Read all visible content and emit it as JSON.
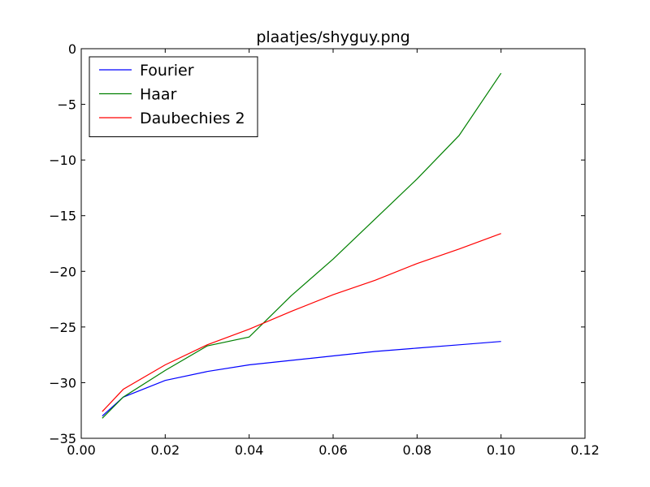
{
  "chart_data": {
    "type": "line",
    "title": "plaatjes/shyguy.png",
    "xlabel": "",
    "ylabel": "",
    "xlim": [
      0.0,
      0.12
    ],
    "ylim": [
      -35,
      0
    ],
    "x_ticks": [
      0.0,
      0.02,
      0.04,
      0.06,
      0.08,
      0.1,
      0.12
    ],
    "x_tick_labels": [
      "0.00",
      "0.02",
      "0.04",
      "0.06",
      "0.08",
      "0.10",
      "0.12"
    ],
    "y_ticks": [
      0,
      -5,
      -10,
      -15,
      -20,
      -25,
      -30,
      -35
    ],
    "y_tick_labels": [
      "0",
      "−5",
      "−10",
      "−15",
      "−20",
      "−25",
      "−30",
      "−35"
    ],
    "grid": false,
    "legend_position": "top-left",
    "series": [
      {
        "name": "Fourier",
        "color": "#0000ff",
        "x": [
          0.005,
          0.01,
          0.02,
          0.03,
          0.04,
          0.05,
          0.06,
          0.07,
          0.08,
          0.09,
          0.1
        ],
        "y": [
          -33.0,
          -31.3,
          -29.8,
          -29.0,
          -28.4,
          -28.0,
          -27.6,
          -27.2,
          -26.9,
          -26.6,
          -26.3
        ]
      },
      {
        "name": "Haar",
        "color": "#008000",
        "x": [
          0.005,
          0.01,
          0.02,
          0.03,
          0.04,
          0.05,
          0.06,
          0.07,
          0.08,
          0.09,
          0.1
        ],
        "y": [
          -33.2,
          -31.3,
          -28.9,
          -26.7,
          -25.9,
          -22.2,
          -18.9,
          -15.3,
          -11.7,
          -7.8,
          -2.2
        ]
      },
      {
        "name": "Daubechies 2",
        "color": "#ff0000",
        "x": [
          0.005,
          0.01,
          0.02,
          0.03,
          0.04,
          0.05,
          0.06,
          0.07,
          0.08,
          0.09,
          0.1
        ],
        "y": [
          -32.6,
          -30.6,
          -28.4,
          -26.6,
          -25.2,
          -23.6,
          -22.1,
          -20.8,
          -19.3,
          -18.0,
          -16.6
        ]
      }
    ]
  }
}
